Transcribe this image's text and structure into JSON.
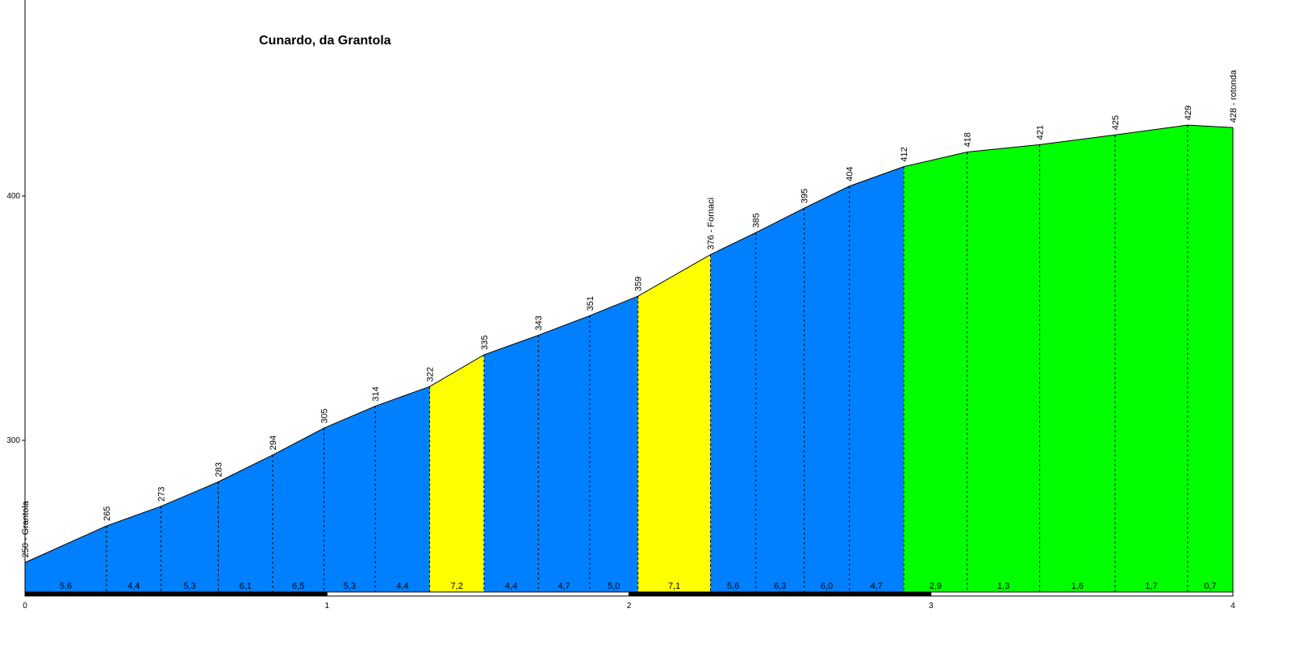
{
  "chart_data": {
    "type": "area",
    "title": "Cunardo, da Grantola",
    "xlabel": "",
    "ylabel": "",
    "xlim": [
      0,
      4
    ],
    "ylim": [
      235,
      480
    ],
    "x_ticks": [
      "0",
      "1",
      "2",
      "3",
      "4"
    ],
    "y_ticks": [
      "300",
      "400"
    ],
    "grid": false,
    "legend": "none",
    "points": [
      {
        "x": 0.0,
        "y": 250,
        "label": "250 - Grantola"
      },
      {
        "x": 0.27,
        "y": 265,
        "label": "265"
      },
      {
        "x": 0.45,
        "y": 273,
        "label": "273"
      },
      {
        "x": 0.64,
        "y": 283,
        "label": "283"
      },
      {
        "x": 0.82,
        "y": 294,
        "label": "294"
      },
      {
        "x": 0.99,
        "y": 305,
        "label": "305"
      },
      {
        "x": 1.16,
        "y": 314,
        "label": "314"
      },
      {
        "x": 1.34,
        "y": 322,
        "label": "322"
      },
      {
        "x": 1.52,
        "y": 335,
        "label": "335"
      },
      {
        "x": 1.7,
        "y": 343,
        "label": "343"
      },
      {
        "x": 1.87,
        "y": 351,
        "label": "351"
      },
      {
        "x": 2.03,
        "y": 359,
        "label": "359"
      },
      {
        "x": 2.27,
        "y": 376,
        "label": "376 - Fornaci"
      },
      {
        "x": 2.42,
        "y": 385,
        "label": "385"
      },
      {
        "x": 2.58,
        "y": 395,
        "label": "395"
      },
      {
        "x": 2.73,
        "y": 404,
        "label": "404"
      },
      {
        "x": 2.91,
        "y": 412,
        "label": "412"
      },
      {
        "x": 3.12,
        "y": 418,
        "label": "418"
      },
      {
        "x": 3.36,
        "y": 421,
        "label": "421"
      },
      {
        "x": 3.61,
        "y": 425,
        "label": "425"
      },
      {
        "x": 3.85,
        "y": 429,
        "label": "429"
      },
      {
        "x": 4.0,
        "y": 428,
        "label": "428 - rotonda"
      }
    ],
    "segments": [
      {
        "gradient": "5,6",
        "color": "#0080ff"
      },
      {
        "gradient": "4,4",
        "color": "#0080ff"
      },
      {
        "gradient": "5,3",
        "color": "#0080ff"
      },
      {
        "gradient": "6,1",
        "color": "#0080ff"
      },
      {
        "gradient": "6,5",
        "color": "#0080ff"
      },
      {
        "gradient": "5,3",
        "color": "#0080ff"
      },
      {
        "gradient": "4,4",
        "color": "#0080ff"
      },
      {
        "gradient": "7,2",
        "color": "#ffff00"
      },
      {
        "gradient": "4,4",
        "color": "#0080ff"
      },
      {
        "gradient": "4,7",
        "color": "#0080ff"
      },
      {
        "gradient": "5,0",
        "color": "#0080ff"
      },
      {
        "gradient": "7,1",
        "color": "#ffff00"
      },
      {
        "gradient": "5,6",
        "color": "#0080ff"
      },
      {
        "gradient": "6,3",
        "color": "#0080ff"
      },
      {
        "gradient": "6,0",
        "color": "#0080ff"
      },
      {
        "gradient": "4,7",
        "color": "#0080ff"
      },
      {
        "gradient": "2,9",
        "color": "#00ff00"
      },
      {
        "gradient": "1,3",
        "color": "#00ff00"
      },
      {
        "gradient": "1,6",
        "color": "#00ff00"
      },
      {
        "gradient": "1,7",
        "color": "#00ff00"
      },
      {
        "gradient": "0,7",
        "color": "#00ff00"
      }
    ]
  }
}
